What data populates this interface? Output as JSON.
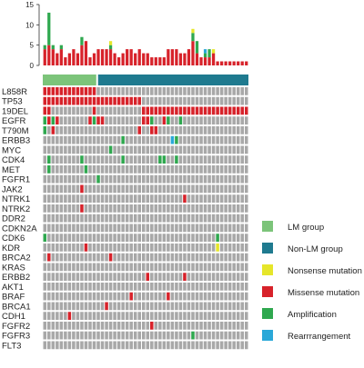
{
  "chart_data": {
    "type": "heatmap",
    "variant": "oncoprint",
    "n_samples": 50,
    "lm_count": 13,
    "nonlm_count": 37,
    "bar_axis": {
      "ylim": [
        0,
        15
      ],
      "ticks": [
        0,
        5,
        10,
        15
      ]
    },
    "colors": {
      "lm": "#7cc47a",
      "nonlm": "#1f7a8f",
      "nonsense": "#e6e62a",
      "missense": "#d7222a",
      "amplification": "#2fa84f",
      "rearrangement": "#2aa8d8",
      "none": "#a8a8a8"
    },
    "legend": [
      {
        "key": "lm",
        "label": "LM group"
      },
      {
        "key": "nonlm",
        "label": "Non-LM group"
      },
      {
        "key": "nonsense",
        "label": "Nonsense mutation"
      },
      {
        "key": "missense",
        "label": "Missense mutation"
      },
      {
        "key": "amplification",
        "label": "Amplification"
      },
      {
        "key": "rearrangement",
        "label": "Rearrrangement"
      }
    ],
    "bars": [
      {
        "missense": 4,
        "amplification": 1
      },
      {
        "missense": 5,
        "amplification": 8
      },
      {
        "missense": 4,
        "amplification": 1
      },
      {
        "missense": 3
      },
      {
        "missense": 4,
        "amplification": 1
      },
      {
        "missense": 2
      },
      {
        "missense": 3
      },
      {
        "missense": 4
      },
      {
        "missense": 3
      },
      {
        "missense": 5,
        "amplification": 2
      },
      {
        "missense": 6
      },
      {
        "missense": 2
      },
      {
        "missense": 3
      },
      {
        "missense": 4
      },
      {
        "missense": 4
      },
      {
        "missense": 4
      },
      {
        "missense": 4,
        "amplification": 1,
        "nonsense": 1
      },
      {
        "missense": 3
      },
      {
        "missense": 2
      },
      {
        "missense": 3
      },
      {
        "missense": 4
      },
      {
        "missense": 4
      },
      {
        "missense": 3
      },
      {
        "missense": 4
      },
      {
        "missense": 3
      },
      {
        "missense": 3
      },
      {
        "missense": 2
      },
      {
        "missense": 2
      },
      {
        "missense": 2
      },
      {
        "missense": 2
      },
      {
        "missense": 4
      },
      {
        "missense": 4
      },
      {
        "missense": 4
      },
      {
        "missense": 3
      },
      {
        "missense": 3
      },
      {
        "missense": 4
      },
      {
        "missense": 6,
        "amplification": 2,
        "nonsense": 1
      },
      {
        "missense": 3,
        "amplification": 3
      },
      {
        "missense": 2
      },
      {
        "missense": 2,
        "amplification": 1,
        "rearrangement": 1
      },
      {
        "missense": 2,
        "amplification": 2
      },
      {
        "missense": 3,
        "nonsense": 1
      },
      {
        "missense": 1
      },
      {
        "missense": 1
      },
      {
        "missense": 1
      },
      {
        "missense": 1
      },
      {
        "missense": 1
      },
      {
        "missense": 1
      },
      {
        "missense": 1
      },
      {
        "missense": 1
      }
    ],
    "genes": [
      {
        "name": "L858R",
        "segments": [
          [
            "missense",
            0,
            13
          ]
        ]
      },
      {
        "name": "TP53",
        "segments": [
          [
            "missense",
            0,
            24
          ]
        ]
      },
      {
        "name": "19DEL",
        "segments": [
          [
            "missense",
            0,
            2
          ],
          [
            "missense",
            12,
            13
          ],
          [
            "missense",
            24,
            50
          ]
        ]
      },
      {
        "name": "EGFR",
        "segments": [
          [
            "amplification",
            0,
            1
          ],
          [
            "missense",
            1,
            2
          ],
          [
            "amplification",
            2,
            3
          ],
          [
            "missense",
            3,
            4
          ],
          [
            "missense",
            11,
            12
          ],
          [
            "amplification",
            12,
            13
          ],
          [
            "missense",
            13,
            15
          ],
          [
            "missense",
            24,
            26
          ],
          [
            "amplification",
            26,
            27
          ],
          [
            "missense",
            29,
            30
          ],
          [
            "amplification",
            30,
            31
          ],
          [
            "amplification",
            33,
            34
          ]
        ]
      },
      {
        "name": "T790M",
        "segments": [
          [
            "amplification",
            0,
            1
          ],
          [
            "missense",
            2,
            3
          ],
          [
            "missense",
            23,
            24
          ],
          [
            "missense",
            26,
            28
          ]
        ]
      },
      {
        "name": "ERBB3",
        "segments": [
          [
            "amplification",
            19,
            20
          ],
          [
            "rearrangement",
            31,
            32
          ],
          [
            "amplification",
            32,
            33
          ]
        ]
      },
      {
        "name": "MYC",
        "segments": [
          [
            "amplification",
            16,
            17
          ]
        ]
      },
      {
        "name": "CDK4",
        "segments": [
          [
            "amplification",
            1,
            2
          ],
          [
            "amplification",
            9,
            10
          ],
          [
            "amplification",
            19,
            20
          ],
          [
            "amplification",
            28,
            30
          ],
          [
            "amplification",
            32,
            33
          ]
        ]
      },
      {
        "name": "MET",
        "segments": [
          [
            "amplification",
            1,
            2
          ],
          [
            "amplification",
            10,
            11
          ]
        ]
      },
      {
        "name": "FGFR1",
        "segments": [
          [
            "amplification",
            13,
            14
          ]
        ]
      },
      {
        "name": "JAK2",
        "segments": [
          [
            "missense",
            9,
            10
          ]
        ]
      },
      {
        "name": "NTRK1",
        "segments": [
          [
            "missense",
            34,
            35
          ]
        ]
      },
      {
        "name": "NTRK2",
        "segments": [
          [
            "missense",
            9,
            10
          ]
        ]
      },
      {
        "name": "DDR2",
        "segments": []
      },
      {
        "name": "CDKN2A",
        "segments": []
      },
      {
        "name": "CDK6",
        "segments": [
          [
            "amplification",
            0,
            1
          ],
          [
            "amplification",
            42,
            43
          ]
        ]
      },
      {
        "name": "KDR",
        "segments": [
          [
            "missense",
            10,
            11
          ],
          [
            "nonsense",
            42,
            43
          ]
        ]
      },
      {
        "name": "BRCA2",
        "segments": [
          [
            "missense",
            1,
            2
          ],
          [
            "missense",
            16,
            17
          ]
        ]
      },
      {
        "name": "KRAS",
        "segments": []
      },
      {
        "name": "ERBB2",
        "segments": [
          [
            "missense",
            25,
            26
          ],
          [
            "missense",
            34,
            35
          ]
        ]
      },
      {
        "name": "AKT1",
        "segments": []
      },
      {
        "name": "BRAF",
        "segments": [
          [
            "missense",
            21,
            22
          ],
          [
            "missense",
            30,
            31
          ]
        ]
      },
      {
        "name": "BRCA1",
        "segments": [
          [
            "missense",
            15,
            16
          ]
        ]
      },
      {
        "name": "CDH1",
        "segments": [
          [
            "missense",
            6,
            7
          ]
        ]
      },
      {
        "name": "FGFR2",
        "segments": [
          [
            "missense",
            26,
            27
          ]
        ]
      },
      {
        "name": "FGFR3",
        "segments": [
          [
            "amplification",
            36,
            37
          ]
        ]
      },
      {
        "name": "FLT3",
        "segments": []
      }
    ]
  }
}
